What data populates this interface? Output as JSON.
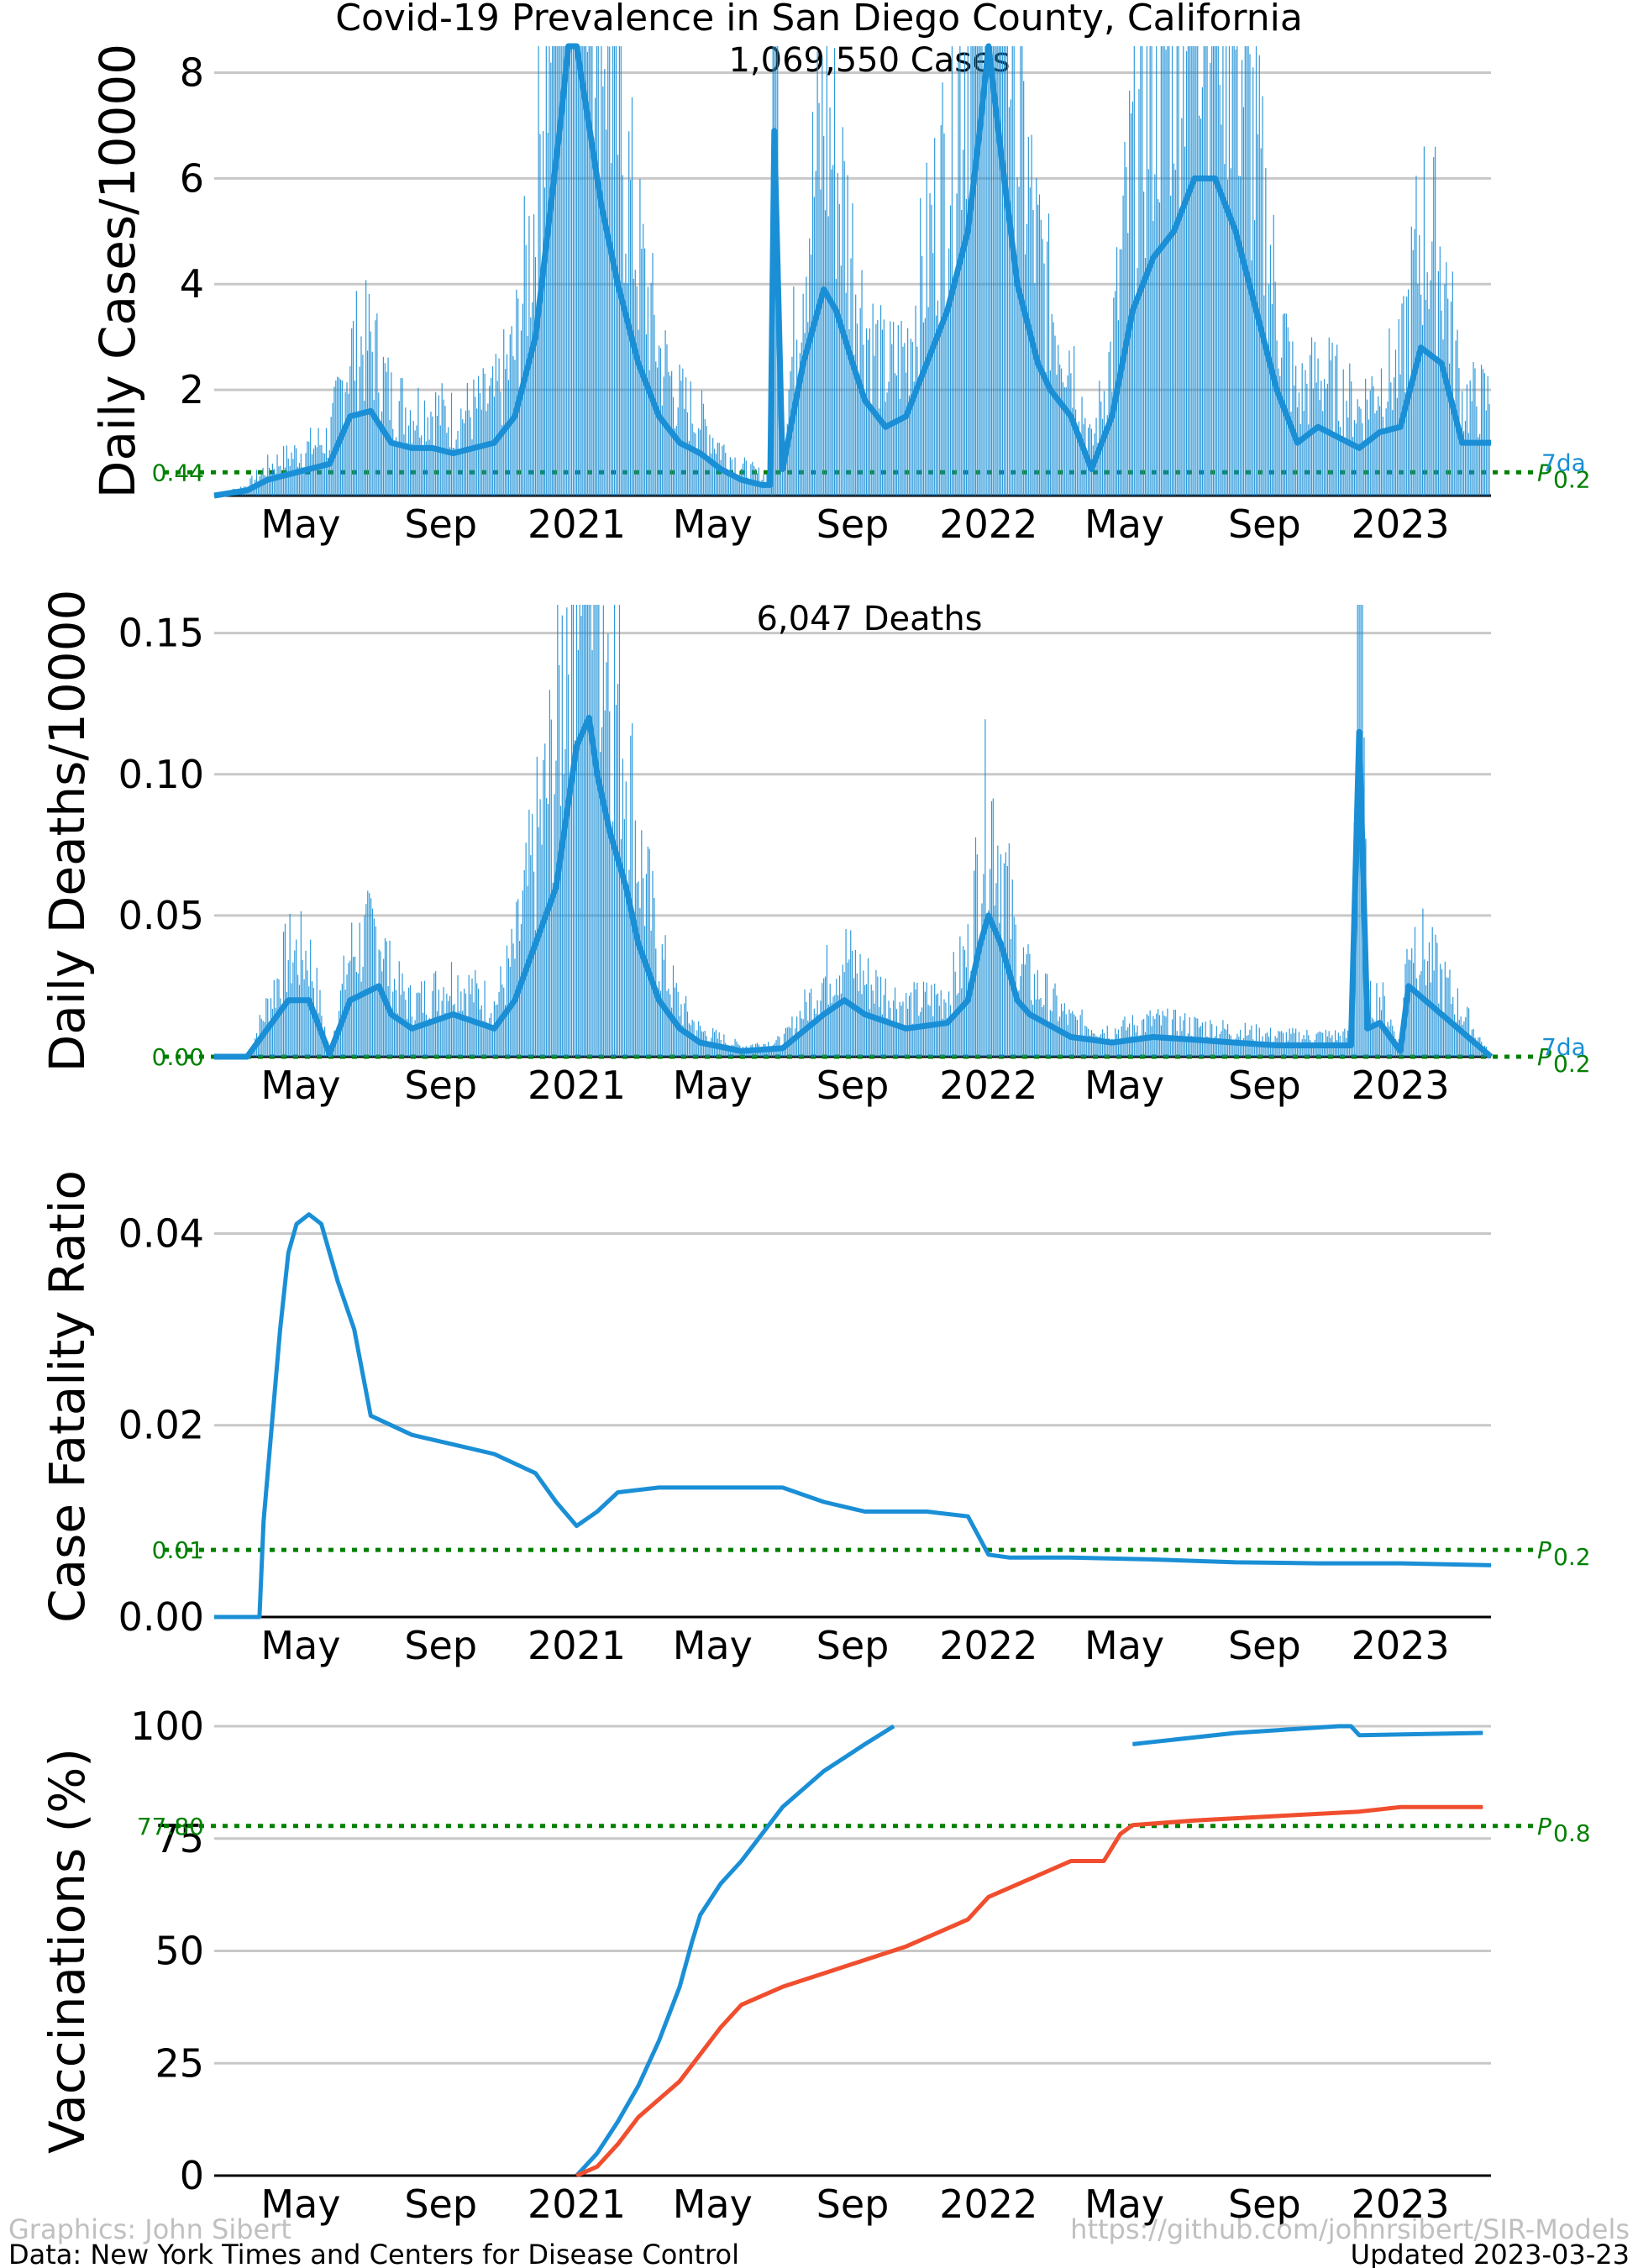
{
  "title": "Covid-19 Prevalence in San Diego County, California",
  "colors": {
    "main": "#1a8fd6",
    "ref": "#008000",
    "second": "#f04e2e",
    "grid": "#c8c8c8"
  },
  "x_ticks": [
    "May",
    "Sep",
    "2021",
    "May",
    "Sep",
    "2022",
    "May",
    "Sep",
    "2023"
  ],
  "x_tick_values": [
    2020.33,
    2020.67,
    2021.0,
    2021.33,
    2021.67,
    2022.0,
    2022.33,
    2022.67,
    2023.0
  ],
  "x_range": [
    2020.12,
    2023.22
  ],
  "chart_data": [
    {
      "type": "line",
      "name": "cases",
      "ylabel": "Daily Cases/10000",
      "ylim": [
        0,
        8.5
      ],
      "yticks": [
        2,
        4,
        6,
        8
      ],
      "ytick_labels": [
        "2",
        "4",
        "6",
        "8"
      ],
      "annotation": "1,069,550 Cases",
      "ref_value": 0.44,
      "ref_value_label": "0.44",
      "ref_label_main": "P",
      "ref_label_sub": "0.2",
      "series_label": "7da",
      "series": [
        {
          "name": "7da",
          "x": [
            2020.12,
            2020.2,
            2020.25,
            2020.3,
            2020.4,
            2020.45,
            2020.5,
            2020.55,
            2020.6,
            2020.65,
            2020.7,
            2020.8,
            2020.85,
            2020.9,
            2020.93,
            2020.96,
            2020.98,
            2021.0,
            2021.03,
            2021.06,
            2021.1,
            2021.15,
            2021.2,
            2021.25,
            2021.3,
            2021.35,
            2021.4,
            2021.45,
            2021.47,
            2021.48,
            2021.5,
            2021.55,
            2021.6,
            2021.63,
            2021.67,
            2021.7,
            2021.75,
            2021.8,
            2021.85,
            2021.9,
            2021.95,
            2021.98,
            2022.0,
            2022.03,
            2022.07,
            2022.12,
            2022.15,
            2022.2,
            2022.25,
            2022.3,
            2022.35,
            2022.4,
            2022.45,
            2022.5,
            2022.55,
            2022.6,
            2022.65,
            2022.7,
            2022.75,
            2022.8,
            2022.9,
            2022.95,
            2023.0,
            2023.05,
            2023.1,
            2023.15,
            2023.22
          ],
          "values": [
            0,
            0.1,
            0.3,
            0.4,
            0.6,
            1.5,
            1.6,
            1.0,
            0.9,
            0.9,
            0.8,
            1.0,
            1.5,
            3.0,
            5.0,
            7.0,
            8.5,
            8.5,
            7.0,
            5.5,
            4.0,
            2.5,
            1.5,
            1.0,
            0.8,
            0.5,
            0.3,
            0.2,
            0.2,
            6.9,
            0.5,
            2.5,
            3.9,
            3.5,
            2.5,
            1.8,
            1.3,
            1.5,
            2.5,
            3.5,
            5.0,
            7.0,
            8.5,
            6.5,
            4.0,
            2.5,
            2.0,
            1.5,
            0.5,
            1.5,
            3.5,
            4.5,
            5.0,
            6.0,
            6.0,
            5.0,
            3.5,
            2.0,
            1.0,
            1.3,
            0.9,
            1.2,
            1.3,
            2.8,
            2.5,
            1.0,
            1.0
          ]
        }
      ]
    },
    {
      "type": "line",
      "name": "deaths",
      "ylabel": "Daily Deaths/10000",
      "ylim": [
        0,
        0.16
      ],
      "yticks": [
        0.05,
        0.1,
        0.15
      ],
      "ytick_labels": [
        "0.05",
        "0.10",
        "0.15"
      ],
      "annotation": "6,047 Deaths",
      "ref_value": 0.0,
      "ref_value_label": "0.00",
      "ref_label_main": "P",
      "ref_label_sub": "0.2",
      "series_label": "7da",
      "series": [
        {
          "name": "7da",
          "x": [
            2020.12,
            2020.2,
            2020.25,
            2020.3,
            2020.35,
            2020.4,
            2020.45,
            2020.52,
            2020.55,
            2020.6,
            2020.7,
            2020.8,
            2020.85,
            2020.9,
            2020.95,
            2020.98,
            2021.0,
            2021.03,
            2021.05,
            2021.08,
            2021.12,
            2021.15,
            2021.2,
            2021.25,
            2021.3,
            2021.4,
            2021.5,
            2021.6,
            2021.65,
            2021.7,
            2021.8,
            2021.9,
            2021.95,
            2021.98,
            2022.0,
            2022.03,
            2022.07,
            2022.1,
            2022.2,
            2022.3,
            2022.4,
            2022.5,
            2022.6,
            2022.7,
            2022.8,
            2022.88,
            2022.9,
            2022.92,
            2022.95,
            2023.0,
            2023.02,
            2023.22
          ],
          "values": [
            0,
            0,
            0.01,
            0.02,
            0.02,
            0.001,
            0.02,
            0.025,
            0.015,
            0.01,
            0.015,
            0.01,
            0.02,
            0.04,
            0.06,
            0.09,
            0.11,
            0.12,
            0.1,
            0.08,
            0.06,
            0.04,
            0.02,
            0.01,
            0.005,
            0.002,
            0.003,
            0.015,
            0.02,
            0.015,
            0.01,
            0.012,
            0.02,
            0.04,
            0.05,
            0.04,
            0.02,
            0.015,
            0.007,
            0.005,
            0.007,
            0.006,
            0.005,
            0.004,
            0.004,
            0.004,
            0.115,
            0.01,
            0.012,
            0.002,
            0.025,
            0
          ]
        }
      ]
    },
    {
      "type": "line",
      "name": "cfr",
      "ylabel": "Case Fatality Ratio",
      "ylim": [
        0,
        0.046
      ],
      "yticks": [
        0.0,
        0.02,
        0.04
      ],
      "ytick_labels": [
        "0.00",
        "0.02",
        "0.04"
      ],
      "ref_value": 0.007,
      "ref_value_label": "0.01",
      "ref_label_main": "P",
      "ref_label_sub": "0.2",
      "series": [
        {
          "name": "cfr",
          "x": [
            2020.12,
            2020.23,
            2020.24,
            2020.26,
            2020.28,
            2020.3,
            2020.32,
            2020.35,
            2020.38,
            2020.42,
            2020.46,
            2020.5,
            2020.6,
            2020.7,
            2020.8,
            2020.9,
            2020.95,
            2021.0,
            2021.05,
            2021.1,
            2021.2,
            2021.4,
            2021.5,
            2021.6,
            2021.7,
            2021.85,
            2021.95,
            2022.0,
            2022.05,
            2022.2,
            2022.4,
            2022.6,
            2022.8,
            2022.9,
            2023.0,
            2023.22
          ],
          "values": [
            0,
            0,
            0.01,
            0.02,
            0.03,
            0.038,
            0.041,
            0.042,
            0.041,
            0.035,
            0.03,
            0.021,
            0.019,
            0.018,
            0.017,
            0.015,
            0.012,
            0.0095,
            0.011,
            0.013,
            0.0135,
            0.0135,
            0.0135,
            0.012,
            0.011,
            0.011,
            0.0105,
            0.0065,
            0.0062,
            0.0062,
            0.006,
            0.0057,
            0.0056,
            0.0056,
            0.0056,
            0.0054
          ]
        }
      ]
    },
    {
      "type": "line",
      "name": "vaccinations",
      "ylabel": "Vaccinations (%)",
      "ylim": [
        0,
        100
      ],
      "yticks": [
        0,
        25,
        50,
        75,
        100
      ],
      "ytick_labels": [
        "0",
        "25",
        "50",
        "75",
        "100"
      ],
      "ref_value": 77.8,
      "ref_value_label": "77.80",
      "ref_label_main": "P",
      "ref_label_sub": "0.8",
      "series": [
        {
          "name": "dose1",
          "color": "#1a8fd6",
          "x": [
            2021.0,
            2021.05,
            2021.1,
            2021.15,
            2021.2,
            2021.25,
            2021.28,
            2021.3,
            2021.35,
            2021.4,
            2021.5,
            2021.6,
            2021.7,
            2021.77
          ],
          "values": [
            0,
            5,
            12,
            20,
            30,
            42,
            52,
            58,
            65,
            70,
            82,
            90,
            96,
            100
          ]
        },
        {
          "name": "dose1-late",
          "color": "#1a8fd6",
          "x": [
            2022.35,
            2022.4,
            2022.6,
            2022.85,
            2022.88,
            2022.9,
            2023.2
          ],
          "values": [
            96,
            96.5,
            98.5,
            100,
            100,
            98,
            98.5
          ]
        },
        {
          "name": "complete",
          "color": "#f04e2e",
          "x": [
            2021.0,
            2021.05,
            2021.1,
            2021.15,
            2021.2,
            2021.25,
            2021.3,
            2021.35,
            2021.4,
            2021.5,
            2021.6,
            2021.7,
            2021.8,
            2021.9,
            2021.95,
            2021.97,
            2022.0,
            2022.1,
            2022.2,
            2022.28,
            2022.32,
            2022.35,
            2022.5,
            2022.7,
            2022.9,
            2023.0,
            2023.2
          ],
          "values": [
            0,
            2,
            7,
            13,
            17,
            21,
            27,
            33,
            38,
            42,
            45,
            48,
            51,
            55,
            57,
            59,
            62,
            66,
            70,
            70,
            76,
            78,
            79,
            80,
            81,
            82,
            82
          ]
        }
      ]
    }
  ],
  "footer": {
    "left_top": "Graphics: John Sibert",
    "left_bottom": "Data: New York Times and Centers for Disease Control",
    "right_top": "https://github.com/johnrsibert/SIR-Models",
    "right_bottom": "Updated 2023-03-23"
  }
}
